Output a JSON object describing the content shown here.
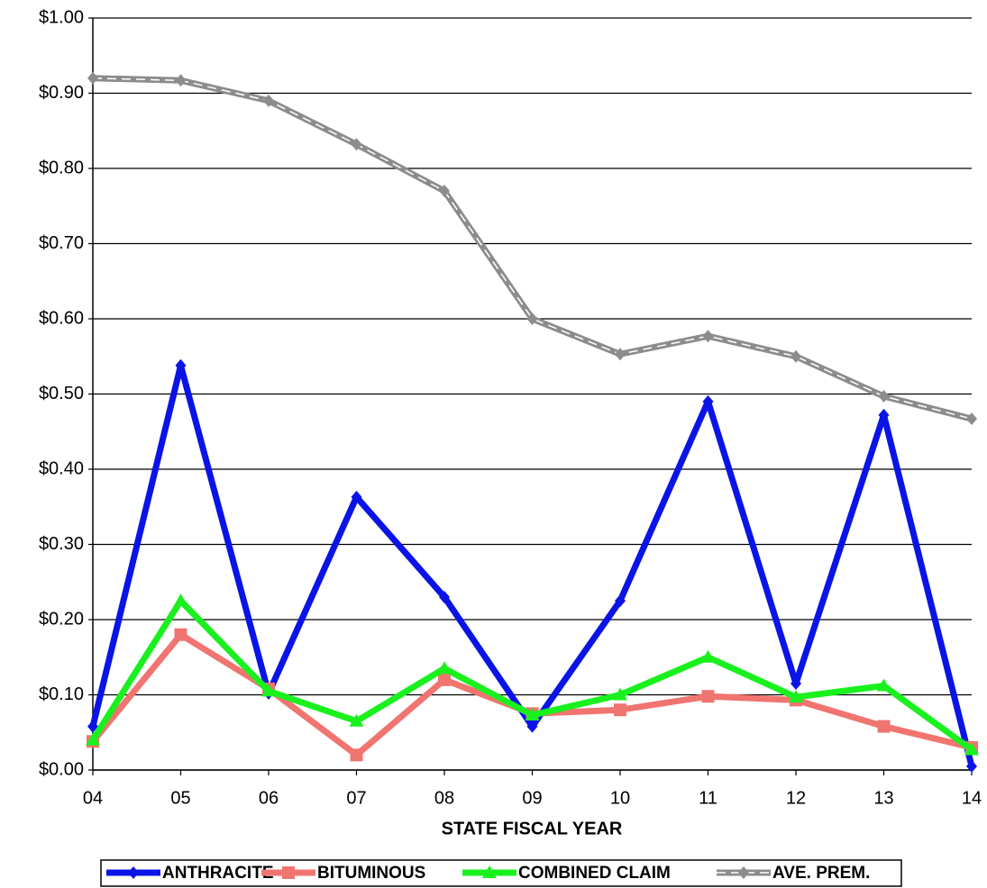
{
  "chart_data": {
    "type": "line",
    "x_label": "STATE FISCAL YEAR",
    "categories": [
      "04",
      "05",
      "06",
      "07",
      "08",
      "09",
      "10",
      "11",
      "12",
      "13",
      "14"
    ],
    "series": [
      {
        "name": "ANTHRACITE",
        "color": "#0a14e6",
        "marker": "diamond",
        "values": [
          0.058,
          0.538,
          0.102,
          0.363,
          0.23,
          0.058,
          0.225,
          0.49,
          0.115,
          0.472,
          0.005
        ]
      },
      {
        "name": "BITUMINOUS",
        "color": "#f07470",
        "marker": "square",
        "values": [
          0.038,
          0.18,
          0.108,
          0.02,
          0.12,
          0.075,
          0.08,
          0.098,
          0.093,
          0.058,
          0.03
        ]
      },
      {
        "name": "COMBINED CLAIM",
        "color": "#19f01e",
        "marker": "triangle",
        "values": [
          0.04,
          0.225,
          0.105,
          0.065,
          0.135,
          0.073,
          0.1,
          0.15,
          0.097,
          0.112,
          0.027
        ]
      },
      {
        "name": "AVE. PREM.",
        "color": "#8c8c8c",
        "marker": "diamond",
        "dashed": true,
        "values": [
          0.92,
          0.917,
          0.89,
          0.832,
          0.77,
          0.6,
          0.553,
          0.577,
          0.55,
          0.497,
          0.467
        ]
      }
    ],
    "ylim": [
      0,
      1
    ],
    "yticks": [
      {
        "value": 0,
        "label": "$0.00"
      },
      {
        "value": 0.1,
        "label": "$0.10"
      },
      {
        "value": 0.2,
        "label": "$0.20"
      },
      {
        "value": 0.3,
        "label": "$0.30"
      },
      {
        "value": 0.4,
        "label": "$0.40"
      },
      {
        "value": 0.5,
        "label": "$0.50"
      },
      {
        "value": 0.6,
        "label": "$0.60"
      },
      {
        "value": 0.7,
        "label": "$0.70"
      },
      {
        "value": 0.8,
        "label": "$0.80"
      },
      {
        "value": 0.9,
        "label": "$0.90"
      },
      {
        "value": 1,
        "label": "$1.00"
      }
    ],
    "grid": true
  }
}
